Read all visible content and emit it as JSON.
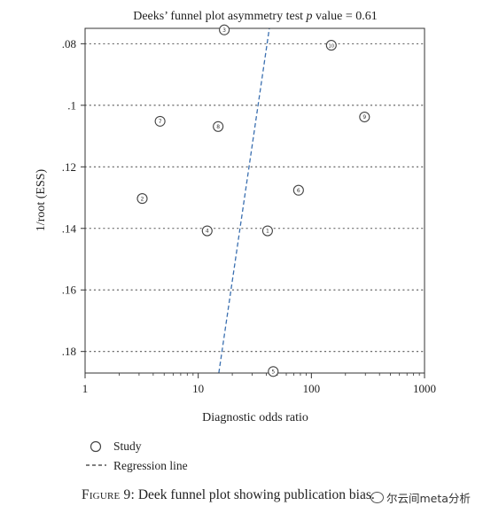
{
  "chart_data": {
    "type": "scatter",
    "title_parts": [
      "Deeks’ funnel plot asymmetry test ",
      "p",
      " value = 0.61"
    ],
    "xlabel": "Diagnostic odds ratio",
    "ylabel": "1/root (ESS)",
    "x_scale": "log",
    "xlim": [
      1,
      1000
    ],
    "ylim": [
      0.075,
      0.187
    ],
    "y_inverted": true,
    "x_ticks": [
      1,
      10,
      100,
      1000
    ],
    "x_tick_labels": [
      "1",
      "10",
      "100",
      "1000"
    ],
    "y_ticks": [
      0.08,
      0.1,
      0.12,
      0.14,
      0.16,
      0.18
    ],
    "y_tick_labels": [
      ".08",
      ".1",
      ".12",
      ".14",
      ".16",
      ".18"
    ],
    "grid": "horizontal dotted",
    "series": [
      {
        "name": "Study",
        "points": [
          {
            "label": "1",
            "x": 41,
            "y": 0.1408
          },
          {
            "label": "2",
            "x": 3.2,
            "y": 0.1303
          },
          {
            "label": "3",
            "x": 17,
            "y": 0.0755
          },
          {
            "label": "4",
            "x": 12,
            "y": 0.1408
          },
          {
            "label": "5",
            "x": 46,
            "y": 0.1865
          },
          {
            "label": "6",
            "x": 77,
            "y": 0.1276
          },
          {
            "label": "7",
            "x": 4.6,
            "y": 0.1052
          },
          {
            "label": "8",
            "x": 15,
            "y": 0.1069
          },
          {
            "label": "9",
            "x": 295,
            "y": 0.1038
          },
          {
            "label": "10",
            "x": 150,
            "y": 0.0805
          }
        ]
      },
      {
        "name": "Regression line",
        "line": [
          {
            "x": 15.2,
            "y": 0.187
          },
          {
            "x": 42.5,
            "y": 0.075
          }
        ]
      }
    ],
    "legend": [
      {
        "symbol": "circle",
        "label": "Study"
      },
      {
        "symbol": "dashed-line",
        "label": "Regression line"
      }
    ],
    "legend_position": "bottom-left",
    "colors": {
      "points": "#444444",
      "regression": "#3a6fb0",
      "grid": "#555555",
      "text": "#222222"
    }
  },
  "caption": {
    "figure_number": "Figure 9:",
    "text": "Deek funnel plot showing publication bias."
  },
  "watermark": {
    "text": "尔云间meta分析"
  }
}
